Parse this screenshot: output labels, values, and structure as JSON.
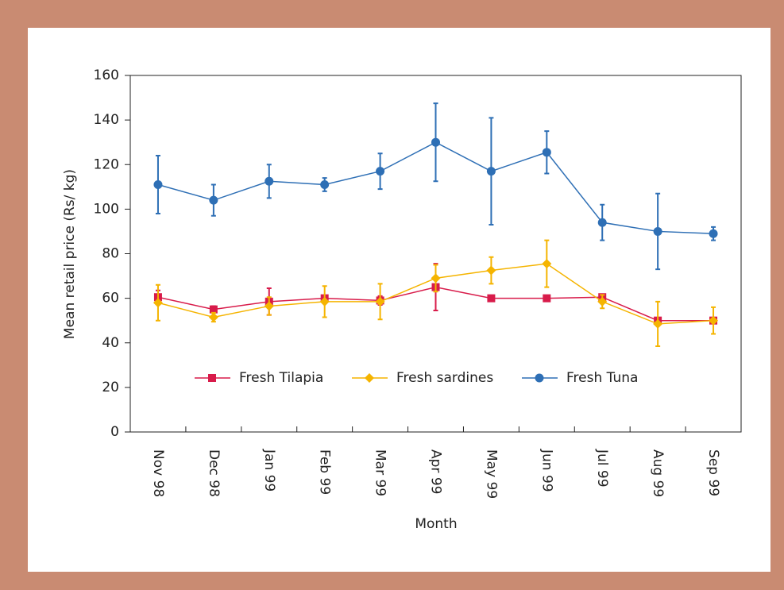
{
  "chart_data": {
    "type": "line",
    "x_label": "Month",
    "y_label": "Mean retail price (Rs/ kg)",
    "categories": [
      "Nov 98",
      "Dec 98",
      "Jan 99",
      "Feb 99",
      "Mar 99",
      "Apr 99",
      "May 99",
      "Jun 99",
      "Jul 99",
      "Aug 99",
      "Sep 99"
    ],
    "ylim": [
      0,
      160
    ],
    "yticks": [
      0,
      20,
      40,
      60,
      80,
      100,
      120,
      140,
      160
    ],
    "legend": "inside-lower-center",
    "series": [
      {
        "name": "Fresh Tilapia",
        "color": "#d81b4a",
        "marker": "square",
        "values": [
          60.5,
          55,
          58.5,
          60,
          59,
          65,
          60,
          60,
          60.5,
          50,
          50
        ],
        "errors": [
          3,
          1.5,
          6,
          1,
          2,
          10.5,
          0.5,
          0.5,
          1,
          1,
          1
        ]
      },
      {
        "name": "Fresh sardines",
        "color": "#f5b400",
        "marker": "diamond",
        "values": [
          58,
          51.5,
          56.5,
          58.5,
          58.5,
          69,
          72.5,
          75.5,
          58.5,
          48.5,
          50
        ],
        "errors": [
          8,
          2,
          4,
          7,
          8,
          6,
          6,
          10.5,
          3,
          10,
          6
        ]
      },
      {
        "name": "Fresh Tuna",
        "color": "#2e6fb5",
        "marker": "circle",
        "values": [
          111,
          104,
          112.5,
          111,
          117,
          130,
          117,
          125.5,
          94,
          90,
          89
        ],
        "errors": [
          13,
          7,
          7.5,
          3,
          8,
          17.5,
          24,
          9.5,
          8,
          17,
          3
        ]
      }
    ]
  }
}
